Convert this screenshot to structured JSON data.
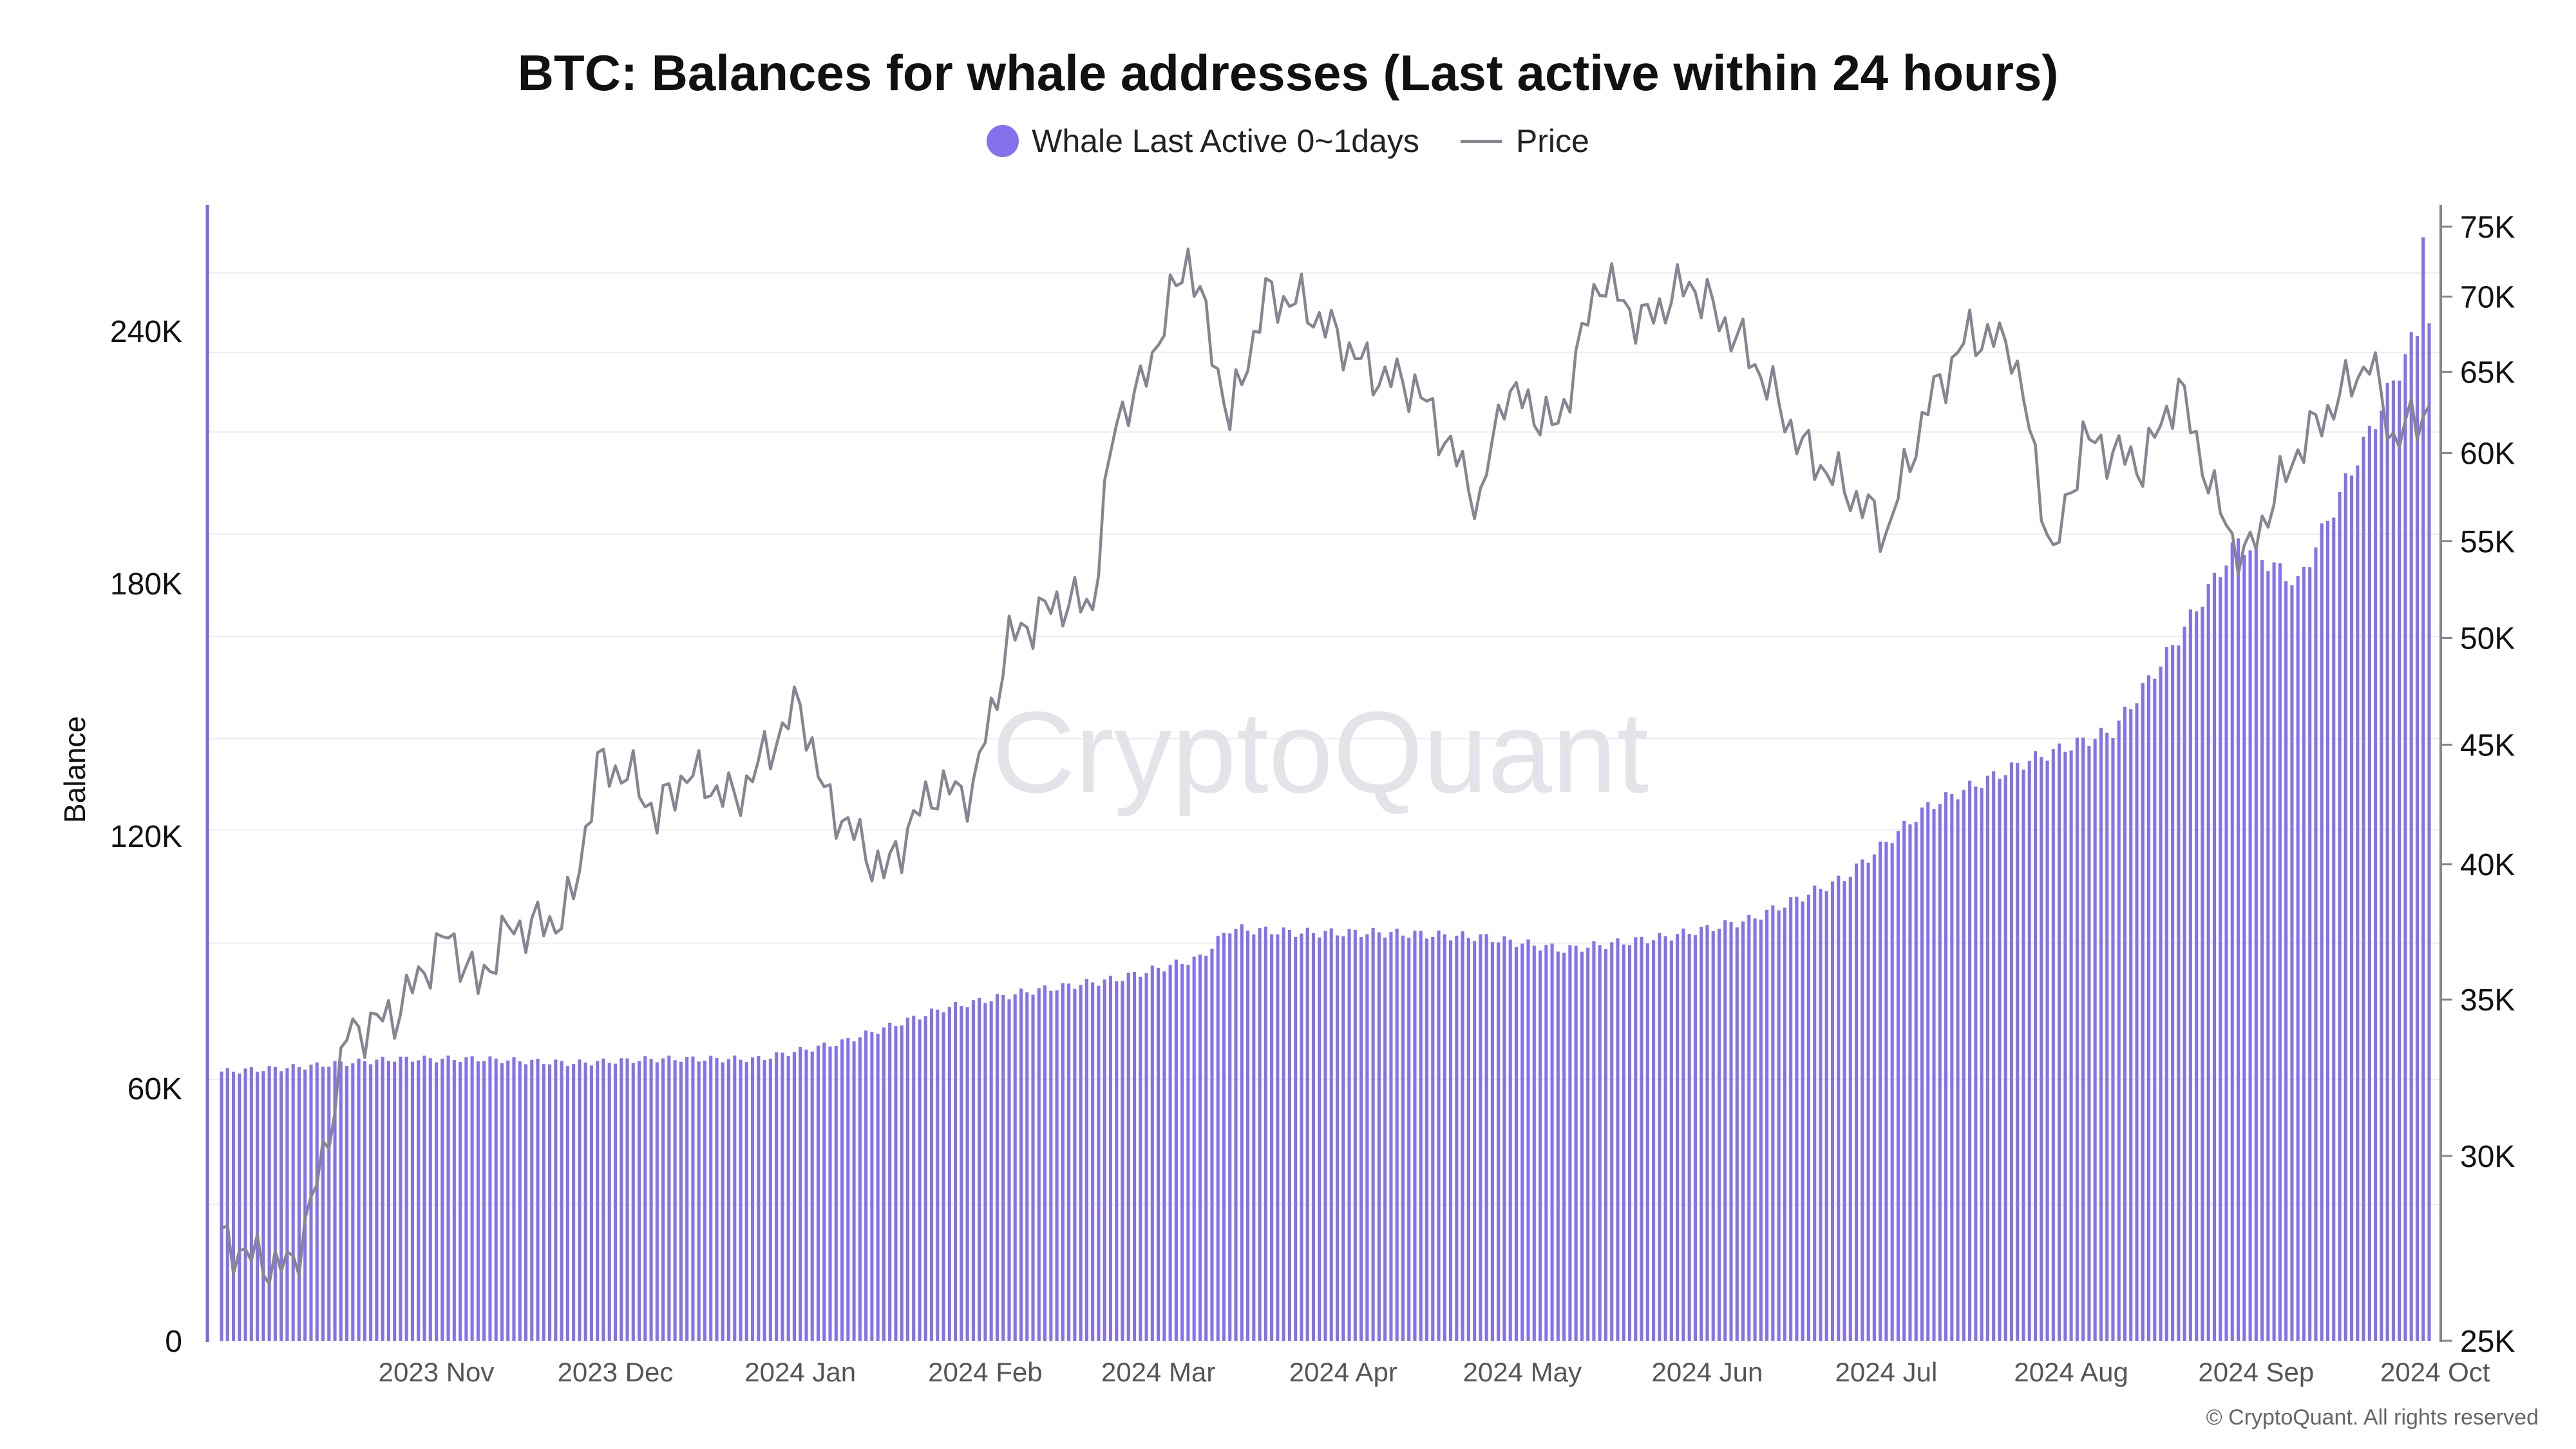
{
  "title": "BTC: Balances for whale addresses (Last active within 24 hours)",
  "legend": {
    "balance_label": "Whale Last Active 0~1days",
    "price_label": "Price"
  },
  "watermark": "CryptoQuant",
  "copyright": "© CryptoQuant. All rights reserved",
  "colors": {
    "bars": "#8372ec",
    "price_line": "#868692",
    "axis_left": "#7b6ad9",
    "grid": "#ececf0",
    "watermark": "#e4e3ea"
  },
  "chart_data": {
    "type": "bar+line",
    "title": "BTC: Balances for whale addresses (Last active within 24 hours)",
    "ylabel": "Balance",
    "y_left": {
      "min": 0,
      "max": 270000,
      "ticks": [
        0,
        60000,
        120000,
        180000,
        240000
      ],
      "tick_labels": [
        "0",
        "60K",
        "120K",
        "180K",
        "240K"
      ]
    },
    "y_right": {
      "scale": "log",
      "min": 25000,
      "max": 75000,
      "ticks": [
        25000,
        30000,
        35000,
        40000,
        45000,
        50000,
        55000,
        60000,
        65000,
        70000,
        75000
      ],
      "tick_labels": [
        "25K",
        "30K",
        "35K",
        "40K",
        "45K",
        "50K",
        "55K",
        "60K",
        "65K",
        "70K",
        "75K"
      ]
    },
    "x": {
      "start": "2023-10-03",
      "end": "2024-10-07",
      "tick_labels": [
        "2023 Nov",
        "2023 Dec",
        "2024 Jan",
        "2024 Feb",
        "2024 Mar",
        "2024 Apr",
        "2024 May",
        "2024 Jun",
        "2024 Jul",
        "2024 Aug",
        "2024 Sep",
        "2024 Oct"
      ]
    },
    "series": [
      {
        "name": "Whale Last Active 0~1days",
        "type": "bar",
        "axis": "left",
        "points": [
          [
            "2023-10-03",
            64000
          ],
          [
            "2023-10-15",
            65000
          ],
          [
            "2023-11-01",
            67000
          ],
          [
            "2023-11-15",
            67000
          ],
          [
            "2023-12-01",
            66000
          ],
          [
            "2023-12-15",
            67000
          ],
          [
            "2024-01-01",
            67000
          ],
          [
            "2024-01-15",
            71000
          ],
          [
            "2024-02-01",
            79000
          ],
          [
            "2024-02-15",
            83000
          ],
          [
            "2024-02-25",
            85000
          ],
          [
            "2024-03-01",
            86000
          ],
          [
            "2024-03-15",
            91000
          ],
          [
            "2024-03-20",
            98000
          ],
          [
            "2024-04-01",
            97000
          ],
          [
            "2024-04-15",
            97000
          ],
          [
            "2024-05-01",
            96000
          ],
          [
            "2024-05-15",
            93000
          ],
          [
            "2024-06-01",
            96000
          ],
          [
            "2024-06-15",
            100000
          ],
          [
            "2024-07-01",
            110000
          ],
          [
            "2024-07-15",
            127000
          ],
          [
            "2024-08-01",
            138000
          ],
          [
            "2024-08-15",
            145000
          ],
          [
            "2024-08-25",
            165000
          ],
          [
            "2024-09-05",
            190000
          ],
          [
            "2024-09-15",
            180000
          ],
          [
            "2024-09-25",
            210000
          ],
          [
            "2024-10-05",
            240000
          ],
          [
            "2024-10-06",
            265000
          ],
          [
            "2024-10-07",
            240000
          ]
        ]
      },
      {
        "name": "Price",
        "type": "line",
        "axis": "right",
        "points": [
          [
            "2023-10-03",
            27600
          ],
          [
            "2023-10-10",
            27000
          ],
          [
            "2023-10-15",
            26900
          ],
          [
            "2023-10-20",
            29800
          ],
          [
            "2023-10-24",
            33800
          ],
          [
            "2023-11-01",
            34500
          ],
          [
            "2023-11-10",
            37300
          ],
          [
            "2023-11-15",
            35500
          ],
          [
            "2023-11-20",
            37500
          ],
          [
            "2023-11-28",
            37800
          ],
          [
            "2023-12-01",
            38700
          ],
          [
            "2023-12-05",
            44000
          ],
          [
            "2023-12-10",
            43800
          ],
          [
            "2023-12-15",
            42000
          ],
          [
            "2023-12-20",
            43800
          ],
          [
            "2023-12-28",
            42600
          ],
          [
            "2024-01-01",
            44100
          ],
          [
            "2024-01-08",
            46900
          ],
          [
            "2024-01-12",
            42800
          ],
          [
            "2024-01-22",
            39600
          ],
          [
            "2024-01-30",
            43000
          ],
          [
            "2024-02-06",
            43000
          ],
          [
            "2024-02-12",
            49900
          ],
          [
            "2024-02-20",
            51800
          ],
          [
            "2024-02-26",
            51700
          ],
          [
            "2024-03-01",
            62300
          ],
          [
            "2024-03-05",
            63800
          ],
          [
            "2024-03-13",
            73000
          ],
          [
            "2024-03-20",
            61900
          ],
          [
            "2024-03-26",
            70000
          ],
          [
            "2024-04-01",
            69600
          ],
          [
            "2024-04-13",
            64900
          ],
          [
            "2024-04-20",
            64100
          ],
          [
            "2024-05-01",
            57000
          ],
          [
            "2024-05-05",
            63900
          ],
          [
            "2024-05-14",
            61500
          ],
          [
            "2024-05-21",
            71400
          ],
          [
            "2024-05-28",
            68200
          ],
          [
            "2024-06-05",
            71000
          ],
          [
            "2024-06-15",
            66200
          ],
          [
            "2024-06-24",
            60300
          ],
          [
            "2024-07-05",
            56700
          ],
          [
            "2024-07-08",
            55400
          ],
          [
            "2024-07-15",
            62900
          ],
          [
            "2024-07-22",
            67500
          ],
          [
            "2024-07-29",
            66800
          ],
          [
            "2024-08-05",
            53900
          ],
          [
            "2024-08-10",
            60800
          ],
          [
            "2024-08-20",
            59300
          ],
          [
            "2024-08-26",
            64000
          ],
          [
            "2024-09-01",
            57400
          ],
          [
            "2024-09-06",
            53900
          ],
          [
            "2024-09-15",
            60200
          ],
          [
            "2024-09-27",
            65800
          ],
          [
            "2024-10-01",
            60800
          ],
          [
            "2024-10-05",
            62100
          ],
          [
            "2024-10-07",
            62800
          ]
        ]
      }
    ]
  }
}
